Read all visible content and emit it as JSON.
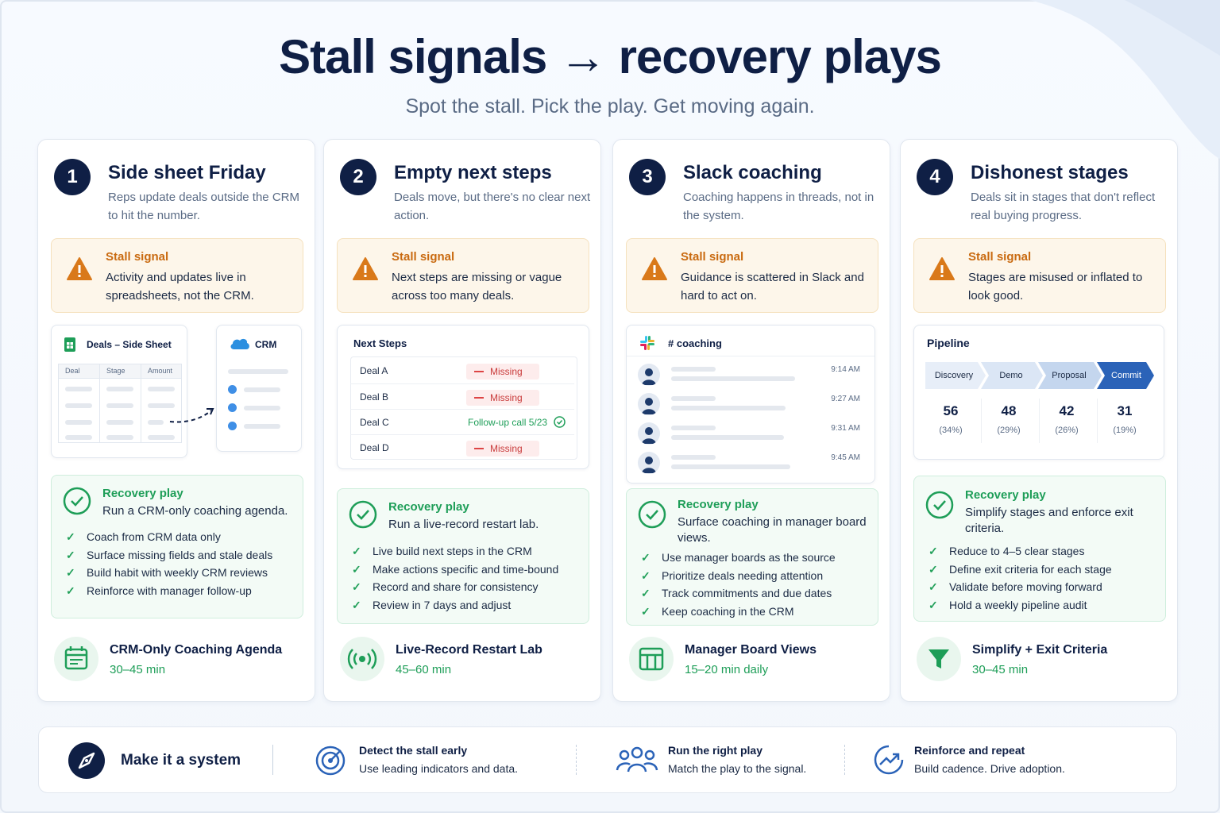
{
  "header": {
    "title": "Stall signals → recovery plays",
    "subtitle": "Spot the stall. Pick the play. Get moving again."
  },
  "cards": [
    {
      "number": "1",
      "title": "Side sheet Friday",
      "description": "Reps update deals outside the CRM to hit the number.",
      "stall_heading": "Stall signal",
      "stall_text": "Activity and updates live in spreadsheets, not the CRM.",
      "visual": {
        "sheet_title": "Deals – Side Sheet",
        "columns": [
          "Deal",
          "Stage",
          "Amount"
        ],
        "crm_label": "CRM"
      },
      "recovery_heading": "Recovery play",
      "recovery_text": "Run a CRM-only coaching agenda.",
      "recovery_items": [
        "Coach from CRM data only",
        "Surface missing fields and stale deals",
        "Build habit with weekly CRM reviews",
        "Reinforce with manager follow-up"
      ],
      "footer_title": "CRM-Only Coaching Agenda",
      "footer_sub": "30–45 min",
      "footer_icon": "calendar-icon"
    },
    {
      "number": "2",
      "title": "Empty next steps",
      "description": "Deals move, but there's no clear next action.",
      "stall_heading": "Stall signal",
      "stall_text": "Next steps are missing or vague across too many deals.",
      "visual": {
        "panel_title": "Next Steps",
        "rows": [
          {
            "deal": "Deal A",
            "status": "Missing"
          },
          {
            "deal": "Deal B",
            "status": "Missing"
          },
          {
            "deal": "Deal C",
            "status": "Follow-up call 5/23"
          },
          {
            "deal": "Deal D",
            "status": "Missing"
          }
        ]
      },
      "recovery_heading": "Recovery play",
      "recovery_text": "Run a live-record restart lab.",
      "recovery_items": [
        "Live build next steps in the CRM",
        "Make actions specific and time-bound",
        "Record and share for consistency",
        "Review in 7 days and adjust"
      ],
      "footer_title": "Live-Record Restart Lab",
      "footer_sub": "45–60 min",
      "footer_icon": "broadcast-icon"
    },
    {
      "number": "3",
      "title": "Slack coaching",
      "description": "Coaching happens in threads, not in the system.",
      "stall_heading": "Stall signal",
      "stall_text": "Guidance is scattered in Slack and hard to act on.",
      "visual": {
        "channel": "# coaching",
        "times": [
          "9:14 AM",
          "9:27 AM",
          "9:31 AM",
          "9:45 AM"
        ]
      },
      "recovery_heading": "Recovery play",
      "recovery_text": "Surface coaching in manager board views.",
      "recovery_items": [
        "Use manager boards as the source",
        "Prioritize deals needing attention",
        "Track commitments and due dates",
        "Keep coaching in the CRM"
      ],
      "footer_title": "Manager Board Views",
      "footer_sub": "15–20 min daily",
      "footer_icon": "board-icon"
    },
    {
      "number": "4",
      "title": "Dishonest stages",
      "description": "Deals sit in stages that don't reflect real buying progress.",
      "stall_heading": "Stall signal",
      "stall_text": "Stages are misused or inflated to look good.",
      "visual": {
        "panel_title": "Pipeline",
        "stages": [
          {
            "name": "Discovery",
            "count": "56",
            "pct": "(34%)"
          },
          {
            "name": "Demo",
            "count": "48",
            "pct": "(29%)"
          },
          {
            "name": "Proposal",
            "count": "42",
            "pct": "(26%)"
          },
          {
            "name": "Commit",
            "count": "31",
            "pct": "(19%)"
          }
        ]
      },
      "recovery_heading": "Recovery play",
      "recovery_text": "Simplify stages and enforce exit criteria.",
      "recovery_items": [
        "Reduce to 4–5 clear stages",
        "Define exit criteria for each stage",
        "Validate before moving forward",
        "Hold a weekly pipeline audit"
      ],
      "footer_title": "Simplify + Exit Criteria",
      "footer_sub": "30–45 min",
      "footer_icon": "funnel-icon"
    }
  ],
  "bottom_bar": {
    "label": "Make it a system",
    "items": [
      {
        "title": "Detect the stall early",
        "sub": "Use leading indicators and data.",
        "icon": "target-icon"
      },
      {
        "title": "Run the right play",
        "sub": "Match the play to the signal.",
        "icon": "team-icon"
      },
      {
        "title": "Reinforce and repeat",
        "sub": "Build cadence. Drive adoption.",
        "icon": "trend-up-icon"
      }
    ]
  },
  "colors": {
    "navy": "#0f1f45",
    "warning": "#d9791a",
    "success": "#1e9e58",
    "missing": "#c93b3b"
  }
}
